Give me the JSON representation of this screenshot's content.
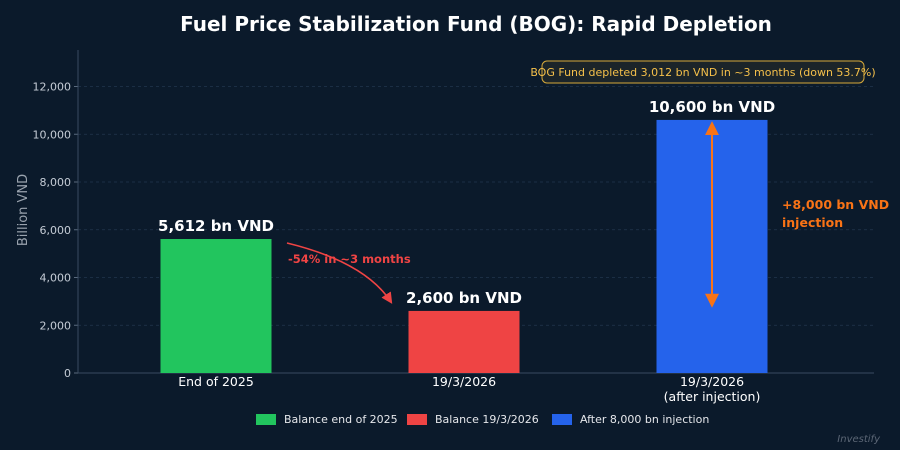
{
  "chart_data": {
    "type": "bar",
    "title": "Fuel Price Stabilization Fund (BOG): Rapid Depletion",
    "ylabel": "Billion VND",
    "xlabel": "",
    "ylim": [
      0,
      13500
    ],
    "yticks": [
      0,
      2000,
      4000,
      6000,
      8000,
      10000,
      12000
    ],
    "ytick_labels": [
      "0",
      "2,000",
      "4,000",
      "6,000",
      "8,000",
      "10,000",
      "12,000"
    ],
    "grid": true,
    "categories": [
      {
        "line1": "End of 2025",
        "line2": ""
      },
      {
        "line1": "19/3/2026",
        "line2": ""
      },
      {
        "line1": "19/3/2026",
        "line2": "(after injection)"
      }
    ],
    "values": [
      5612,
      2600,
      10600
    ],
    "colors": [
      "#22c55e",
      "#ef4444",
      "#2563eb"
    ],
    "data_labels": [
      "5,612 bn VND",
      "2,600 bn VND",
      "10,600 bn VND"
    ],
    "legend": {
      "placement": "bottom",
      "entries": [
        "Balance end of 2025",
        "Balance 19/3/2026",
        "After 8,000 bn injection"
      ]
    },
    "annotations": {
      "decline_text": "-54% in ~3 months",
      "decline_color": "#ef4444",
      "injection_line1": "+8,000 bn VND",
      "injection_line2": "injection",
      "injection_color": "#f97316",
      "injection_from": 2600,
      "injection_to": 10600,
      "summary_box": "BOG Fund depleted 3,012 bn VND in ~3 months (down 53.7%)"
    }
  },
  "watermark": "Investify"
}
